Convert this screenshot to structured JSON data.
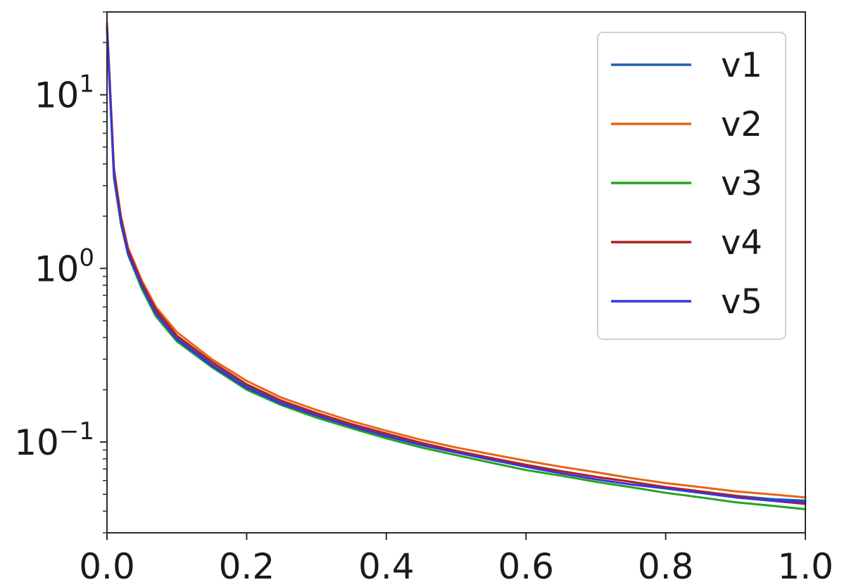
{
  "chart_data": {
    "type": "line",
    "title": "",
    "xlabel": "",
    "ylabel": "",
    "xlim": [
      0.0,
      1.0
    ],
    "ylim": [
      0.03,
      30
    ],
    "yscale": "log",
    "grid": false,
    "legend_position": "top-right",
    "x_ticks": [
      {
        "value": 0.0,
        "label": "0.0"
      },
      {
        "value": 0.2,
        "label": "0.2"
      },
      {
        "value": 0.4,
        "label": "0.4"
      },
      {
        "value": 0.6,
        "label": "0.6"
      },
      {
        "value": 0.8,
        "label": "0.8"
      },
      {
        "value": 1.0,
        "label": "1.0"
      }
    ],
    "y_ticks": [
      {
        "value": 10,
        "base": "10",
        "exponent": "1"
      },
      {
        "value": 1,
        "base": "10",
        "exponent": "0"
      },
      {
        "value": 0.1,
        "base": "10",
        "exponent": "−1"
      }
    ],
    "x": [
      0.0,
      0.01,
      0.02,
      0.03,
      0.05,
      0.07,
      0.1,
      0.15,
      0.2,
      0.25,
      0.3,
      0.35,
      0.4,
      0.45,
      0.5,
      0.55,
      0.6,
      0.65,
      0.7,
      0.75,
      0.8,
      0.85,
      0.9,
      0.95,
      1.0
    ],
    "series": [
      {
        "name": "v1",
        "color": "#1f5fb4",
        "values": [
          25,
          3.5,
          1.9,
          1.25,
          0.8,
          0.56,
          0.4,
          0.28,
          0.21,
          0.17,
          0.145,
          0.125,
          0.11,
          0.098,
          0.088,
          0.08,
          0.073,
          0.068,
          0.063,
          0.059,
          0.055,
          0.052,
          0.049,
          0.047,
          0.046
        ]
      },
      {
        "name": "v2",
        "color": "#e8641a",
        "values": [
          26,
          3.8,
          2.0,
          1.32,
          0.85,
          0.6,
          0.43,
          0.3,
          0.225,
          0.18,
          0.153,
          0.132,
          0.116,
          0.103,
          0.093,
          0.085,
          0.078,
          0.072,
          0.067,
          0.062,
          0.058,
          0.055,
          0.052,
          0.05,
          0.048
        ]
      },
      {
        "name": "v3",
        "color": "#22a51e",
        "values": [
          24,
          3.3,
          1.8,
          1.2,
          0.76,
          0.53,
          0.38,
          0.27,
          0.2,
          0.163,
          0.138,
          0.12,
          0.105,
          0.093,
          0.084,
          0.076,
          0.069,
          0.064,
          0.059,
          0.055,
          0.051,
          0.048,
          0.045,
          0.043,
          0.041
        ]
      },
      {
        "name": "v4",
        "color": "#b01f1f",
        "values": [
          25,
          3.6,
          1.95,
          1.28,
          0.82,
          0.58,
          0.41,
          0.29,
          0.215,
          0.173,
          0.147,
          0.127,
          0.112,
          0.099,
          0.089,
          0.081,
          0.074,
          0.068,
          0.063,
          0.059,
          0.055,
          0.052,
          0.049,
          0.046,
          0.044
        ]
      },
      {
        "name": "v5",
        "color": "#3a33e0",
        "values": [
          24,
          3.4,
          1.85,
          1.22,
          0.79,
          0.55,
          0.39,
          0.275,
          0.205,
          0.166,
          0.142,
          0.123,
          0.108,
          0.096,
          0.087,
          0.079,
          0.072,
          0.066,
          0.061,
          0.057,
          0.054,
          0.051,
          0.048,
          0.046,
          0.045
        ]
      }
    ]
  }
}
